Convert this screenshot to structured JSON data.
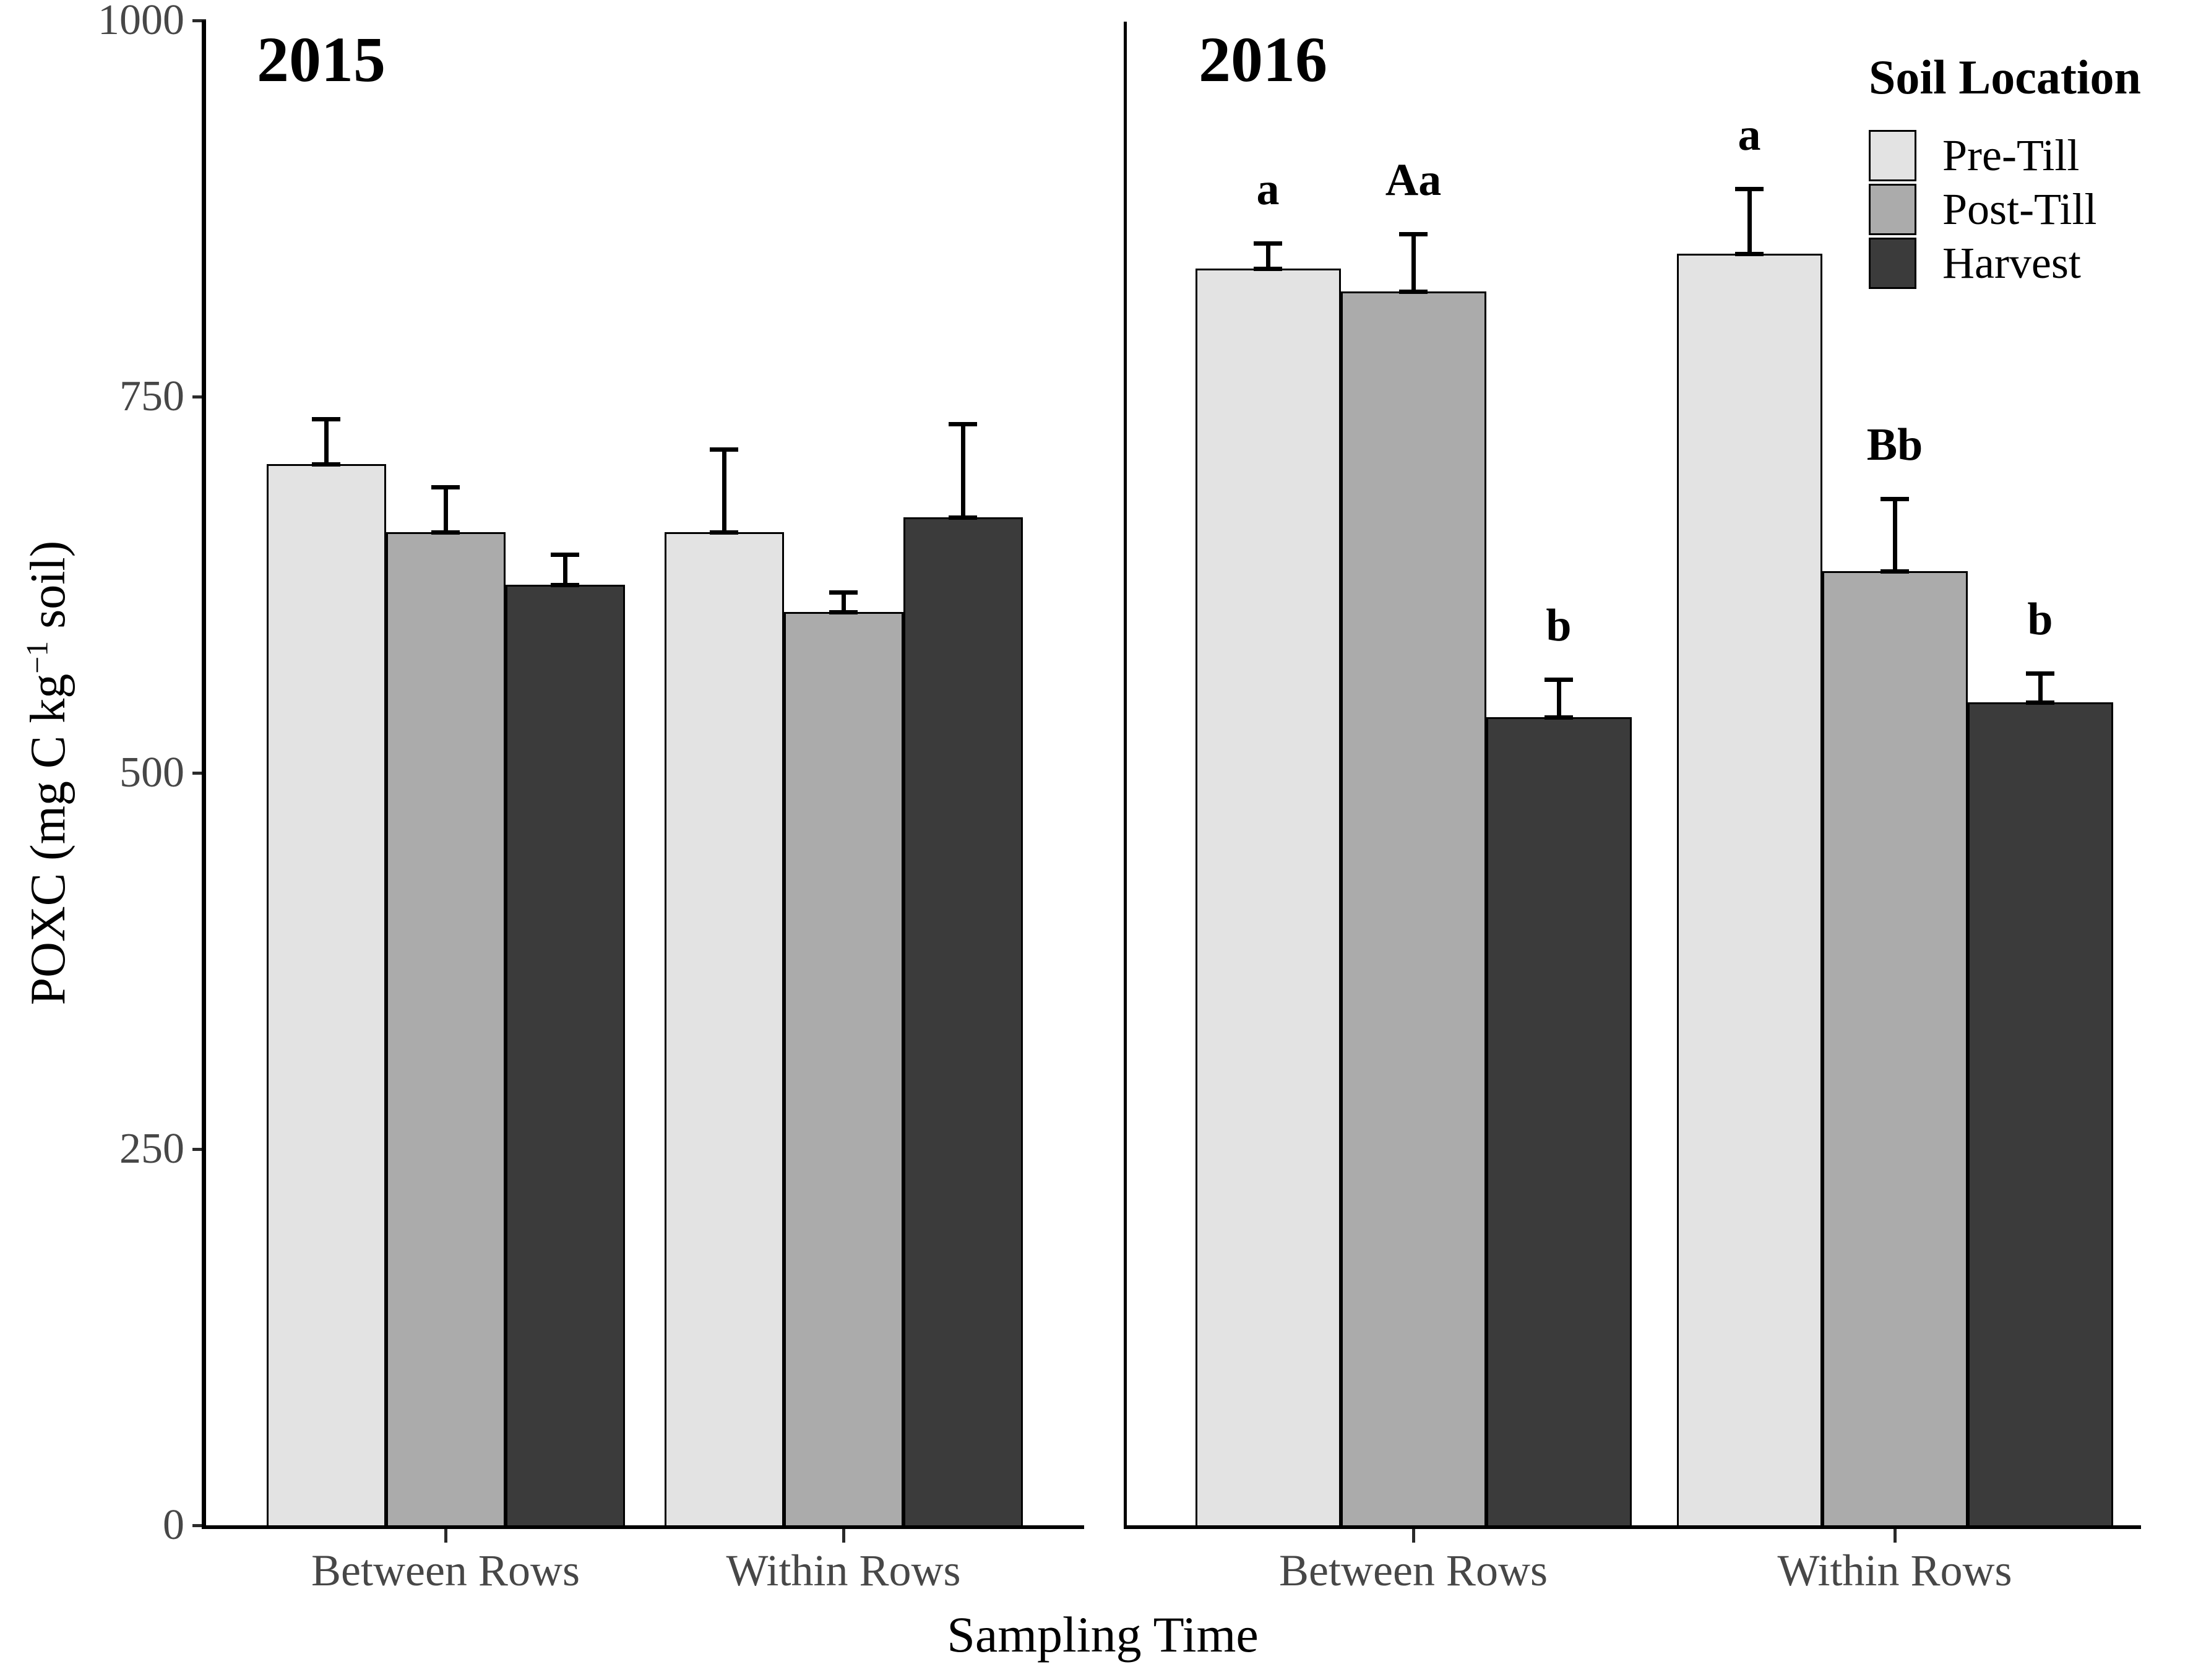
{
  "figure": {
    "xlabel": "Sampling Time",
    "ylabel_pre": "POXC (mg C kg",
    "ylabel_sup": "−1",
    "ylabel_post": " soil)"
  },
  "chart_data": {
    "type": "bar",
    "title": "",
    "xlabel": "Sampling Time",
    "ylabel": "POXC (mg C kg-1 soil)",
    "ylim": [
      0,
      1000
    ],
    "yticks": [
      0,
      250,
      500,
      750,
      1000
    ],
    "grid": false,
    "legend": {
      "title": "Soil Location",
      "position": "top-right",
      "entries": [
        {
          "label": "Pre-Till",
          "color": "#e3e3e3"
        },
        {
          "label": "Post-Till",
          "color": "#ababab"
        },
        {
          "label": "Harvest",
          "color": "#3b3b3b"
        }
      ]
    },
    "bar_border_color": "#000000",
    "error_bar_color": "#000000",
    "panels": [
      {
        "title": "2015",
        "groups": [
          {
            "label": "Between Rows",
            "bars": [
              {
                "series": "Pre-Till",
                "value": 705,
                "error": 30,
                "letter": ""
              },
              {
                "series": "Post-Till",
                "value": 660,
                "error": 30,
                "letter": ""
              },
              {
                "series": "Harvest",
                "value": 625,
                "error": 20,
                "letter": ""
              }
            ]
          },
          {
            "label": "Within Rows",
            "bars": [
              {
                "series": "Pre-Till",
                "value": 660,
                "error": 55,
                "letter": ""
              },
              {
                "series": "Post-Till",
                "value": 607,
                "error": 13,
                "letter": ""
              },
              {
                "series": "Harvest",
                "value": 670,
                "error": 62,
                "letter": ""
              }
            ]
          }
        ]
      },
      {
        "title": "2016",
        "groups": [
          {
            "label": "Between Rows",
            "bars": [
              {
                "series": "Pre-Till",
                "value": 835,
                "error": 17,
                "letter": "a"
              },
              {
                "series": "Post-Till",
                "value": 820,
                "error": 38,
                "letter": "Aa"
              },
              {
                "series": "Harvest",
                "value": 537,
                "error": 25,
                "letter": "b"
              }
            ]
          },
          {
            "label": "Within Rows",
            "bars": [
              {
                "series": "Pre-Till",
                "value": 845,
                "error": 43,
                "letter": "a"
              },
              {
                "series": "Post-Till",
                "value": 634,
                "error": 48,
                "letter": "Bb"
              },
              {
                "series": "Harvest",
                "value": 547,
                "error": 19,
                "letter": "b"
              }
            ]
          }
        ]
      }
    ]
  }
}
